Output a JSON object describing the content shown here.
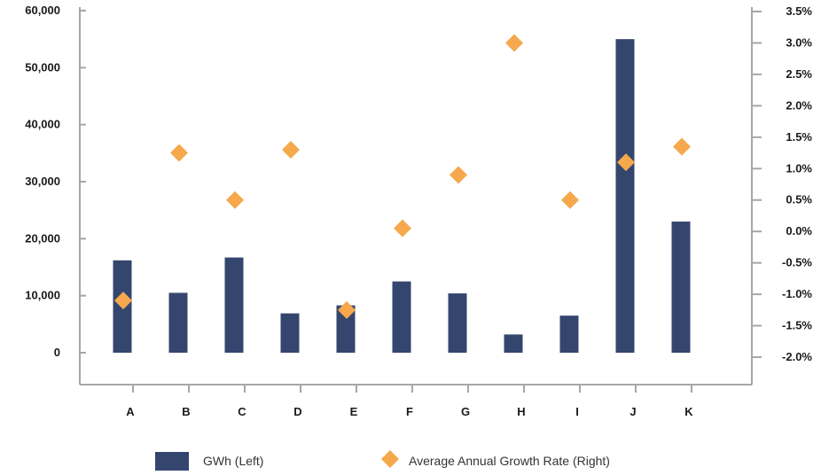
{
  "chart_data": {
    "type": "bar",
    "categories": [
      "A",
      "B",
      "C",
      "D",
      "E",
      "F",
      "G",
      "H",
      "I",
      "J",
      "K"
    ],
    "series": [
      {
        "name": "GWh (Left)",
        "type": "bar",
        "axis": "left",
        "values": [
          16200,
          10500,
          16700,
          6900,
          8300,
          12500,
          10400,
          3200,
          6500,
          55000,
          23000
        ]
      },
      {
        "name": "Average Annual Growth Rate (Right)",
        "type": "scatter",
        "marker": "diamond",
        "axis": "right",
        "values": [
          -1.1,
          1.25,
          0.5,
          1.3,
          -1.25,
          0.05,
          0.9,
          3.0,
          0.5,
          1.1,
          1.35
        ]
      }
    ],
    "left_axis": {
      "ylim": [
        0,
        60000
      ],
      "ticks": [
        0,
        10000,
        20000,
        30000,
        40000,
        50000,
        60000
      ],
      "tick_labels": [
        "0",
        "10,000",
        "20,000",
        "30,000",
        "40,000",
        "50,000",
        "60,000"
      ]
    },
    "right_axis": {
      "ylim": [
        -2.0,
        3.5
      ],
      "ticks": [
        -2.0,
        -1.5,
        -1.0,
        -0.5,
        0.0,
        0.5,
        1.0,
        1.5,
        2.0,
        2.5,
        3.0,
        3.5
      ],
      "tick_labels": [
        "-2.0%",
        "-1.5%",
        "-1.0%",
        "-0.5%",
        "0.0%",
        "0.5%",
        "1.0%",
        "1.5%",
        "2.0%",
        "2.5%",
        "3.0%",
        "3.5%"
      ]
    },
    "grid": false,
    "legend_position": "bottom",
    "colors": {
      "bar": "#34466e",
      "marker": "#f5a84c",
      "axis": "#a6a6a6"
    }
  }
}
